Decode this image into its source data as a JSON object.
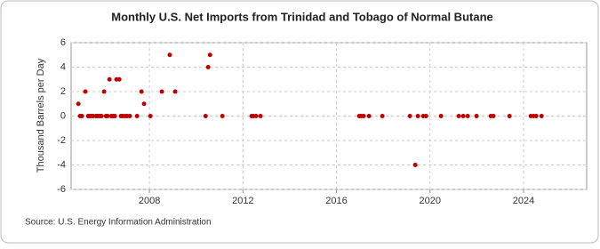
{
  "chart_data": {
    "type": "scatter",
    "title": "Monthly U.S. Net Imports from Trinidad and Tobago of Normal Butane",
    "y_label": "Thousand Barrels per Day",
    "source": "Source: U.S. Energy Information Administration",
    "x": [
      2004.96,
      2005.03,
      2005.11,
      2005.26,
      2005.38,
      2005.45,
      2005.53,
      2005.6,
      2005.72,
      2005.79,
      2005.87,
      2005.95,
      2006.06,
      2006.14,
      2006.21,
      2006.29,
      2006.37,
      2006.44,
      2006.52,
      2006.59,
      2006.71,
      2006.78,
      2006.86,
      2006.97,
      2007.05,
      2007.16,
      2007.47,
      2007.66,
      2007.77,
      2008.04,
      2008.53,
      2008.87,
      2009.1,
      2010.4,
      2010.51,
      2010.59,
      2011.12,
      2012.37,
      2012.45,
      2012.56,
      2012.75,
      2016.97,
      2017.05,
      2017.16,
      2017.39,
      2017.96,
      2019.14,
      2019.37,
      2019.48,
      2019.71,
      2019.83,
      2020.47,
      2021.23,
      2021.42,
      2021.61,
      2021.99,
      2022.6,
      2022.71,
      2023.4,
      2024.31,
      2024.43,
      2024.54,
      2024.77
    ],
    "values": [
      1,
      0,
      0,
      2,
      0,
      0,
      0,
      0,
      0,
      0,
      0,
      0,
      2,
      0,
      0,
      3,
      0,
      0,
      0,
      3,
      3,
      0,
      0,
      0,
      0,
      0,
      0,
      2,
      1,
      0,
      2,
      5,
      2,
      0,
      4,
      5,
      0,
      0,
      0,
      0,
      0,
      0,
      0,
      0,
      0,
      0,
      0,
      -4,
      0,
      0,
      0,
      0,
      0,
      0,
      0,
      0,
      0,
      0,
      0,
      0,
      0,
      0,
      0
    ],
    "color": "#c00000",
    "xlim": [
      2004.65,
      2026.7
    ],
    "xticks": [
      2008,
      2012,
      2016,
      2020,
      2024
    ],
    "ylim": [
      -6,
      6
    ],
    "yticks": [
      -6,
      -4,
      -2,
      0,
      2,
      4,
      6
    ],
    "grid": true
  }
}
